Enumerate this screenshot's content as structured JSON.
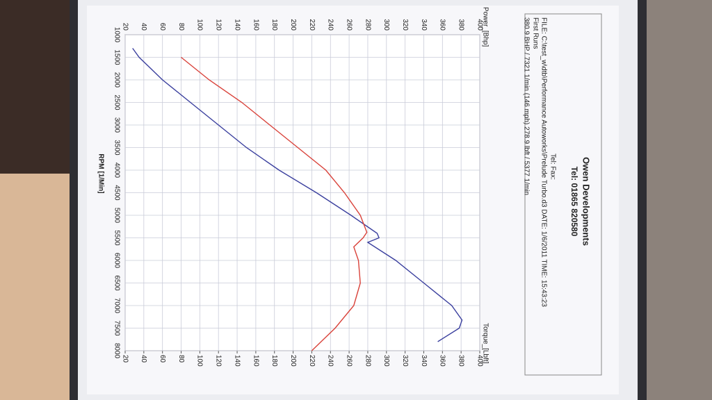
{
  "header": {
    "title": "Owen Developments",
    "tel": "Tel: 01865 820580",
    "tel_fax": "Tel:    Fax:",
    "file": "FILE: C:\\test_w\\dtb\\Performance Autoworks\\Prelude Turbo.d3  DATE: 1/6/2011  TIME: 15:43:23",
    "run": "First Runs",
    "summary": "380.9 BHP / 7321 1/min (146 mph)   278.9 lbft / 5377 1/min"
  },
  "chart_data": {
    "type": "line",
    "xlabel": "RPM [1/Min]",
    "ylabel": "Power_[Bhp]",
    "y2label": "Torque_[Lbft]",
    "xlim": [
      1000,
      8000
    ],
    "xticks": [
      1000,
      1500,
      2000,
      2500,
      3000,
      3500,
      4000,
      4500,
      5000,
      5500,
      6000,
      6500,
      7000,
      7500,
      8000
    ],
    "ylim": [
      20,
      400
    ],
    "yticks": [
      20,
      40,
      60,
      80,
      100,
      120,
      140,
      160,
      180,
      200,
      220,
      240,
      260,
      280,
      300,
      320,
      340,
      360,
      380,
      400
    ],
    "y2lim": [
      20,
      400
    ],
    "y2ticks": [
      20,
      40,
      60,
      80,
      100,
      120,
      140,
      160,
      180,
      200,
      220,
      240,
      260,
      280,
      300,
      320,
      340,
      360,
      380,
      400
    ],
    "grid": true,
    "series": [
      {
        "name": "Power",
        "color": "#3a3f9e",
        "axis": "y",
        "x": [
          1300,
          1500,
          2000,
          2500,
          3000,
          3500,
          4000,
          4500,
          5000,
          5400,
          5500,
          5600,
          6000,
          6500,
          7000,
          7321,
          7500,
          7800
        ],
        "values": [
          28,
          35,
          60,
          90,
          120,
          150,
          185,
          225,
          262,
          290,
          292,
          280,
          310,
          340,
          370,
          381,
          378,
          355
        ]
      },
      {
        "name": "Torque",
        "color": "#d9423a",
        "axis": "y2",
        "x": [
          1500,
          2000,
          2500,
          3000,
          3500,
          4000,
          4500,
          5000,
          5377,
          5500,
          5700,
          6000,
          6500,
          7000,
          7500,
          8000
        ],
        "values": [
          80,
          110,
          145,
          175,
          205,
          235,
          255,
          272,
          279,
          275,
          265,
          270,
          272,
          265,
          245,
          220
        ]
      }
    ]
  }
}
